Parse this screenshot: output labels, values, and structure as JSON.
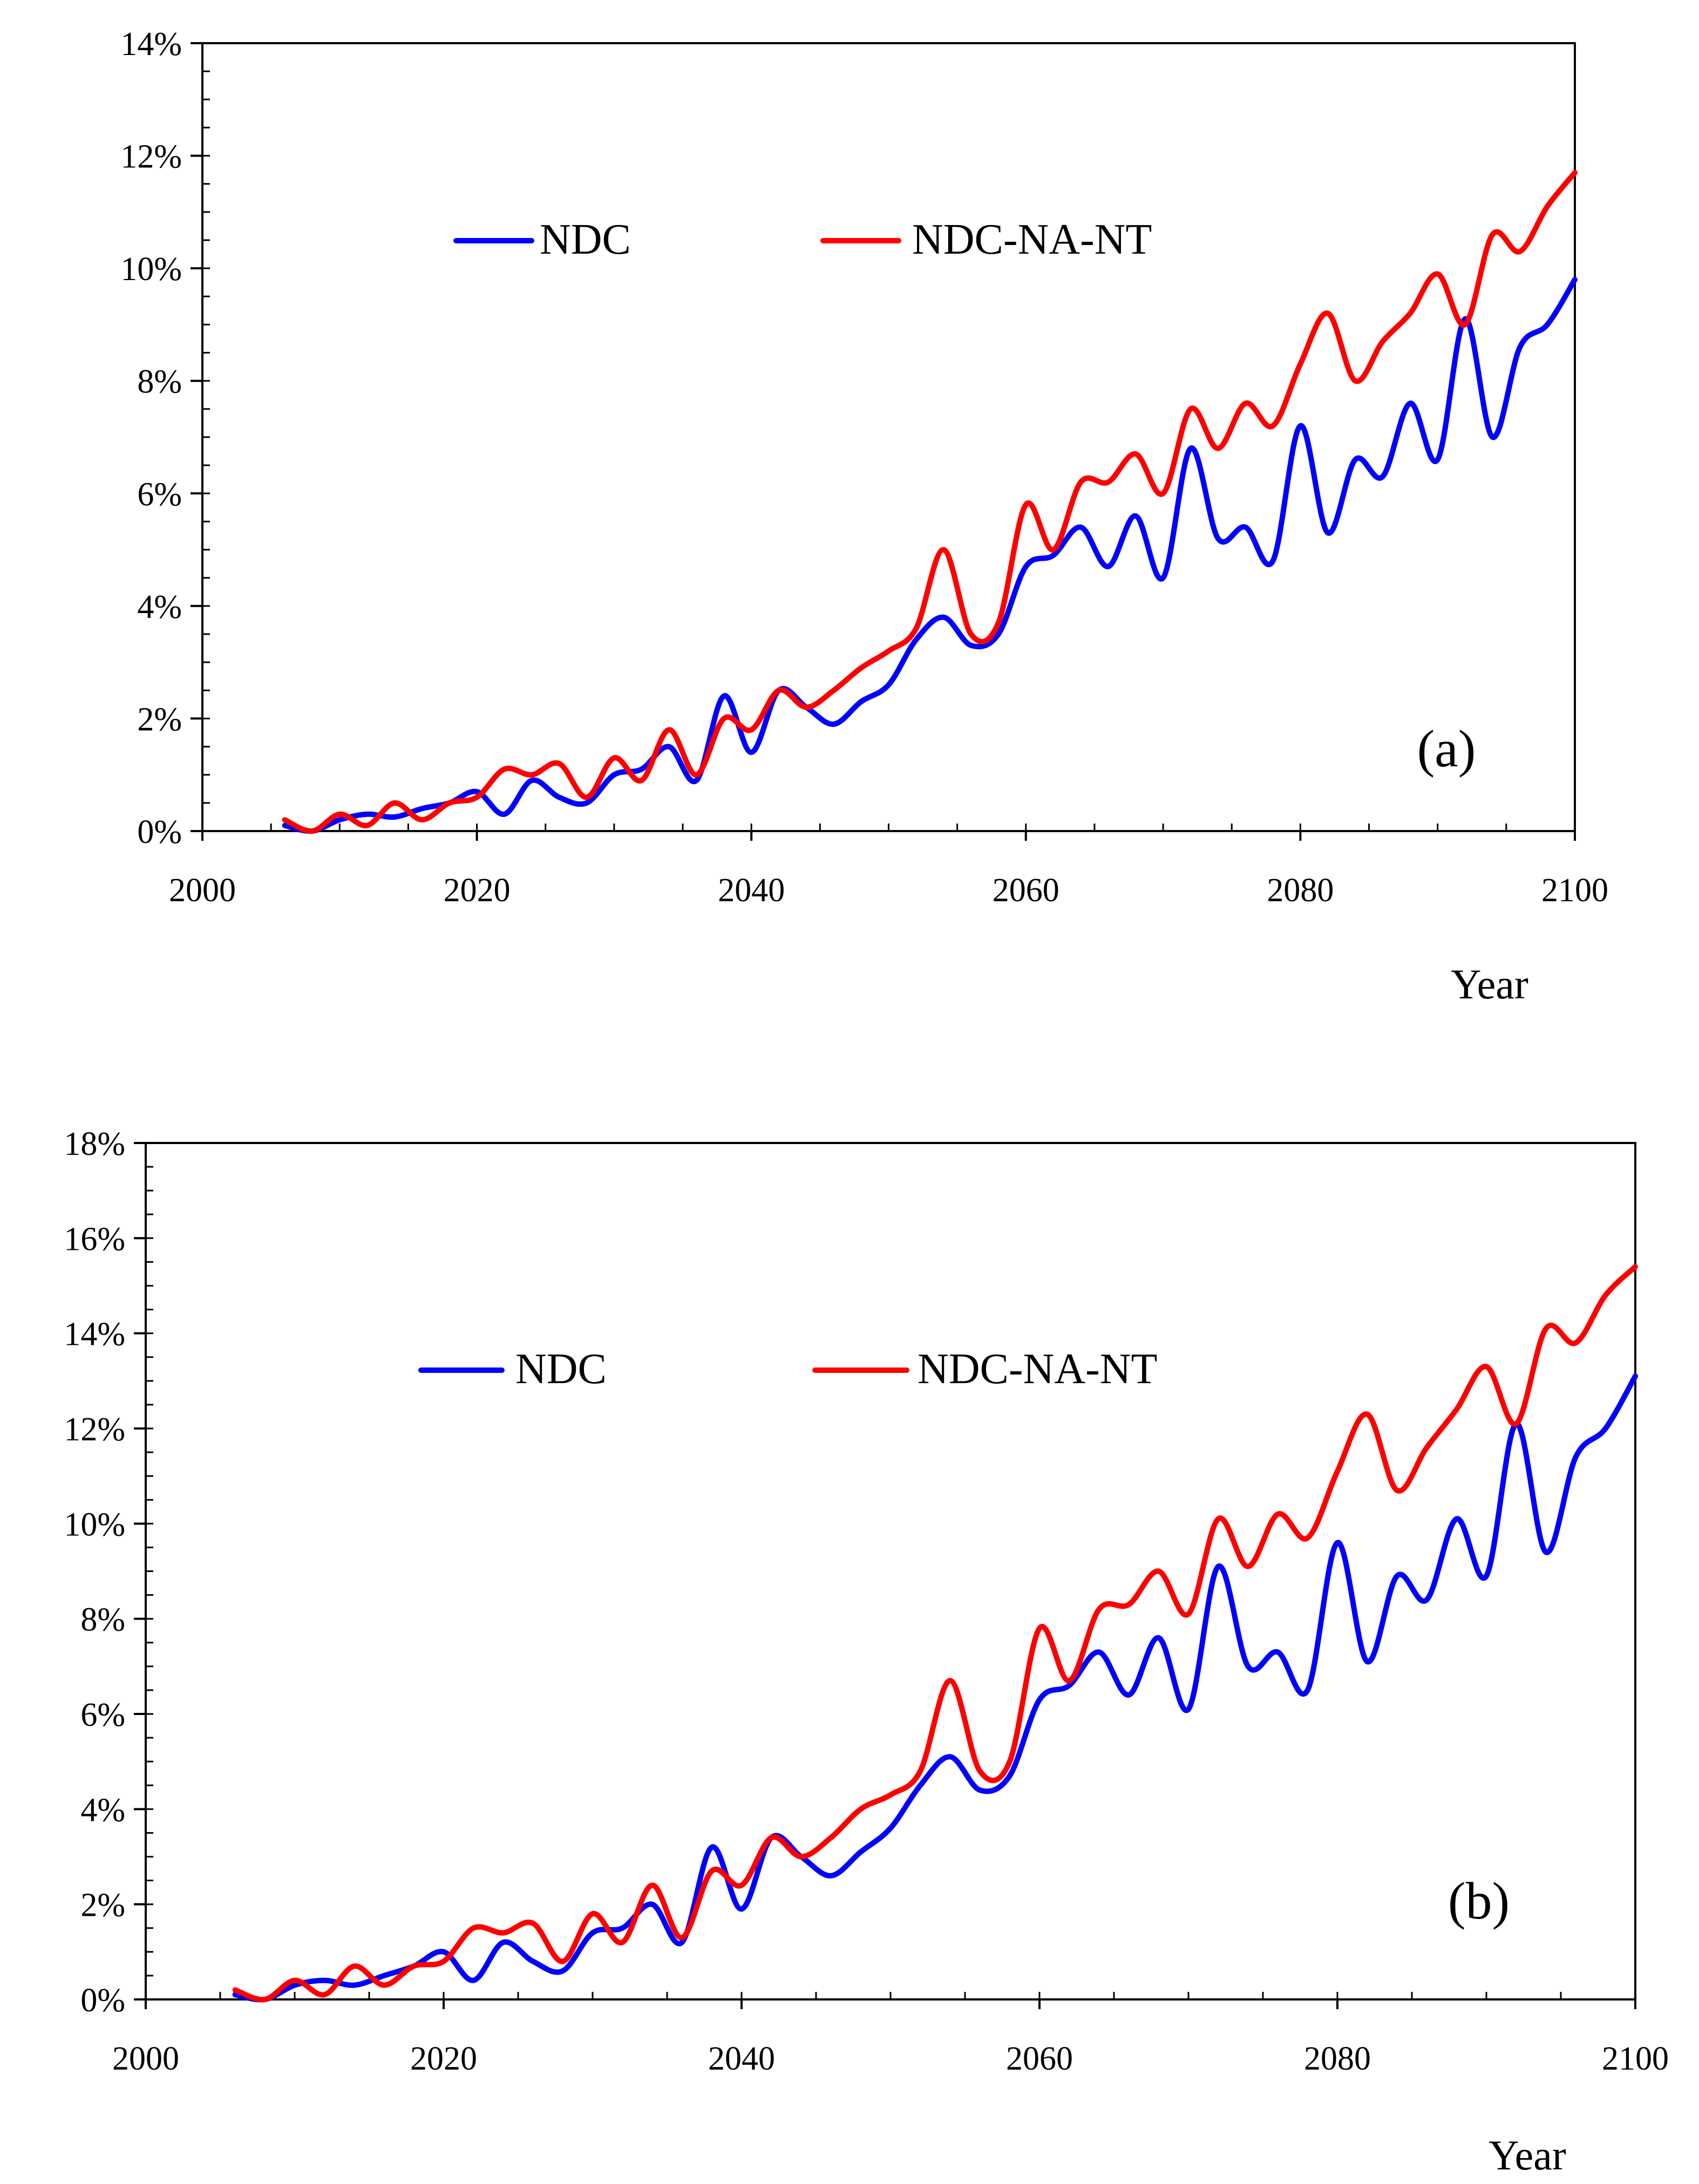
{
  "chart_data": [
    {
      "type": "line",
      "panel_label": "(a)",
      "xlabel": "Year",
      "ylabel": "",
      "xlim": [
        2000,
        2100
      ],
      "ylim": [
        0,
        14
      ],
      "x_ticks": [
        2000,
        2020,
        2040,
        2060,
        2080,
        2100
      ],
      "x_tick_labels": [
        "2000",
        "2020",
        "2040",
        "2060",
        "2080",
        "2100"
      ],
      "y_ticks": [
        0,
        2,
        4,
        6,
        8,
        10,
        12,
        14
      ],
      "y_tick_labels": [
        "0%",
        "2%",
        "4%",
        "6%",
        "8%",
        "10%",
        "12%",
        "14%"
      ],
      "legend_position": "top-center",
      "series": [
        {
          "name": "NDC",
          "color": "#0000ff",
          "x": [
            2006,
            2008,
            2010,
            2012,
            2014,
            2016,
            2018,
            2020,
            2022,
            2024,
            2026,
            2028,
            2030,
            2032,
            2034,
            2036,
            2038,
            2040,
            2042,
            2044,
            2046,
            2048,
            2050,
            2052,
            2054,
            2056,
            2058,
            2060,
            2062,
            2064,
            2066,
            2068,
            2070,
            2072,
            2074,
            2076,
            2078,
            2080,
            2082,
            2084,
            2086,
            2088,
            2090,
            2092,
            2094,
            2096,
            2098,
            2100
          ],
          "values": [
            0.1,
            0.0,
            0.2,
            0.3,
            0.25,
            0.4,
            0.5,
            0.7,
            0.3,
            0.9,
            0.6,
            0.5,
            1.0,
            1.1,
            1.5,
            0.9,
            2.4,
            1.4,
            2.5,
            2.2,
            1.9,
            2.3,
            2.6,
            3.4,
            3.8,
            3.3,
            3.5,
            4.7,
            4.9,
            5.4,
            4.7,
            5.6,
            4.5,
            6.8,
            5.2,
            5.4,
            4.8,
            7.2,
            5.3,
            6.6,
            6.3,
            7.6,
            6.6,
            9.1,
            7.0,
            8.6,
            9.0,
            9.8
          ]
        },
        {
          "name": "NDC-NA-NT",
          "color": "#ff0000",
          "x": [
            2006,
            2008,
            2010,
            2012,
            2014,
            2016,
            2018,
            2020,
            2022,
            2024,
            2026,
            2028,
            2030,
            2032,
            2034,
            2036,
            2038,
            2040,
            2042,
            2044,
            2046,
            2048,
            2050,
            2052,
            2054,
            2056,
            2058,
            2060,
            2062,
            2064,
            2066,
            2068,
            2070,
            2072,
            2074,
            2076,
            2078,
            2080,
            2082,
            2084,
            2086,
            2088,
            2090,
            2092,
            2094,
            2096,
            2098,
            2100
          ],
          "values": [
            0.2,
            0.0,
            0.3,
            0.1,
            0.5,
            0.2,
            0.5,
            0.6,
            1.1,
            1.0,
            1.2,
            0.6,
            1.3,
            0.9,
            1.8,
            1.0,
            2.0,
            1.8,
            2.5,
            2.2,
            2.5,
            2.9,
            3.2,
            3.6,
            5.0,
            3.5,
            3.7,
            5.8,
            5.0,
            6.2,
            6.2,
            6.7,
            6.0,
            7.5,
            6.8,
            7.6,
            7.2,
            8.3,
            9.2,
            8.0,
            8.7,
            9.2,
            9.9,
            9.0,
            10.6,
            10.3,
            11.1,
            11.7
          ]
        }
      ]
    },
    {
      "type": "line",
      "panel_label": "(b)",
      "xlabel": "Year",
      "ylabel": "",
      "xlim": [
        2000,
        2100
      ],
      "ylim": [
        0,
        18
      ],
      "x_ticks": [
        2000,
        2020,
        2040,
        2060,
        2080,
        2100
      ],
      "x_tick_labels": [
        "2000",
        "2020",
        "2040",
        "2060",
        "2080",
        "2100"
      ],
      "y_ticks": [
        0,
        2,
        4,
        6,
        8,
        10,
        12,
        14,
        16,
        18
      ],
      "y_tick_labels": [
        "0%",
        "2%",
        "4%",
        "6%",
        "8%",
        "10%",
        "12%",
        "14%",
        "16%",
        "18%"
      ],
      "legend_position": "top-center",
      "series": [
        {
          "name": "NDC",
          "color": "#0000ff",
          "x": [
            2006,
            2008,
            2010,
            2012,
            2014,
            2016,
            2018,
            2020,
            2022,
            2024,
            2026,
            2028,
            2030,
            2032,
            2034,
            2036,
            2038,
            2040,
            2042,
            2044,
            2046,
            2048,
            2050,
            2052,
            2054,
            2056,
            2058,
            2060,
            2062,
            2064,
            2066,
            2068,
            2070,
            2072,
            2074,
            2076,
            2078,
            2080,
            2082,
            2084,
            2086,
            2088,
            2090,
            2092,
            2094,
            2096,
            2098,
            2100
          ],
          "values": [
            0.1,
            0.0,
            0.3,
            0.4,
            0.3,
            0.5,
            0.7,
            1.0,
            0.4,
            1.2,
            0.8,
            0.6,
            1.4,
            1.5,
            2.0,
            1.2,
            3.2,
            1.9,
            3.4,
            3.0,
            2.6,
            3.1,
            3.6,
            4.5,
            5.1,
            4.4,
            4.7,
            6.3,
            6.6,
            7.3,
            6.4,
            7.6,
            6.1,
            9.1,
            7.0,
            7.3,
            6.5,
            9.6,
            7.1,
            8.9,
            8.4,
            10.1,
            8.9,
            12.1,
            9.4,
            11.4,
            12.0,
            13.1
          ]
        },
        {
          "name": "NDC-NA-NT",
          "color": "#ff0000",
          "x": [
            2006,
            2008,
            2010,
            2012,
            2014,
            2016,
            2018,
            2020,
            2022,
            2024,
            2026,
            2028,
            2030,
            2032,
            2034,
            2036,
            2038,
            2040,
            2042,
            2044,
            2046,
            2048,
            2050,
            2052,
            2054,
            2056,
            2058,
            2060,
            2062,
            2064,
            2066,
            2068,
            2070,
            2072,
            2074,
            2076,
            2078,
            2080,
            2082,
            2084,
            2086,
            2088,
            2090,
            2092,
            2094,
            2096,
            2098,
            2100
          ],
          "values": [
            0.2,
            0.0,
            0.4,
            0.1,
            0.7,
            0.3,
            0.7,
            0.8,
            1.5,
            1.4,
            1.6,
            0.8,
            1.8,
            1.2,
            2.4,
            1.3,
            2.7,
            2.4,
            3.4,
            3.0,
            3.4,
            4.0,
            4.3,
            4.8,
            6.7,
            4.8,
            5.0,
            7.8,
            6.7,
            8.2,
            8.3,
            9.0,
            8.1,
            10.1,
            9.1,
            10.2,
            9.7,
            11.1,
            12.3,
            10.7,
            11.6,
            12.4,
            13.3,
            12.1,
            14.1,
            13.8,
            14.8,
            15.4
          ]
        }
      ]
    }
  ]
}
